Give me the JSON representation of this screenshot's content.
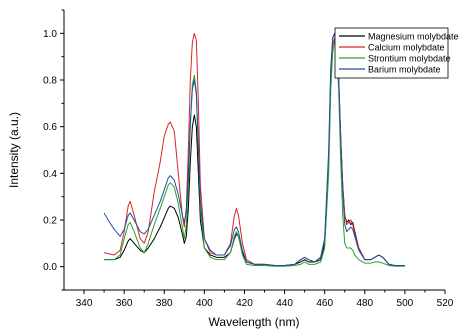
{
  "chart_data": {
    "type": "line",
    "xlabel": "Wavelength (nm)",
    "ylabel": "Intensity (a.u.)",
    "xlim": [
      330,
      520
    ],
    "ylim": [
      -0.1,
      1.1
    ],
    "xticks": [
      340,
      360,
      380,
      400,
      420,
      440,
      460,
      480,
      500,
      520
    ],
    "yticks": [
      0.0,
      0.2,
      0.4,
      0.6,
      0.8,
      1.0
    ],
    "xtick_labels": [
      "340",
      "360",
      "380",
      "400",
      "420",
      "440",
      "460",
      "480",
      "500",
      "520"
    ],
    "ytick_labels": [
      "0.0",
      "0.2",
      "0.4",
      "0.6",
      "0.8",
      "1.0"
    ],
    "grid": false,
    "legend_position": "top-right",
    "series": [
      {
        "name": "Magnesium molybdate",
        "color": "#000000",
        "points": [
          [
            350,
            0.03
          ],
          [
            355,
            0.03
          ],
          [
            358,
            0.04
          ],
          [
            360,
            0.07
          ],
          [
            362,
            0.11
          ],
          [
            363,
            0.12
          ],
          [
            365,
            0.1
          ],
          [
            368,
            0.07
          ],
          [
            370,
            0.06
          ],
          [
            372,
            0.08
          ],
          [
            375,
            0.12
          ],
          [
            378,
            0.17
          ],
          [
            380,
            0.21
          ],
          [
            382,
            0.25
          ],
          [
            383,
            0.26
          ],
          [
            385,
            0.25
          ],
          [
            387,
            0.21
          ],
          [
            389,
            0.14
          ],
          [
            390,
            0.1
          ],
          [
            391,
            0.13
          ],
          [
            392,
            0.25
          ],
          [
            393,
            0.45
          ],
          [
            394,
            0.6
          ],
          [
            395,
            0.65
          ],
          [
            396,
            0.6
          ],
          [
            397,
            0.4
          ],
          [
            398,
            0.2
          ],
          [
            400,
            0.08
          ],
          [
            403,
            0.05
          ],
          [
            406,
            0.04
          ],
          [
            410,
            0.04
          ],
          [
            413,
            0.06
          ],
          [
            415,
            0.12
          ],
          [
            416,
            0.14
          ],
          [
            417,
            0.13
          ],
          [
            419,
            0.06
          ],
          [
            421,
            0.02
          ],
          [
            425,
            0.01
          ],
          [
            430,
            0.01
          ],
          [
            435,
            0.005
          ],
          [
            440,
            0.005
          ],
          [
            445,
            0.01
          ],
          [
            448,
            0.02
          ],
          [
            450,
            0.03
          ],
          [
            452,
            0.02
          ],
          [
            455,
            0.02
          ],
          [
            458,
            0.03
          ],
          [
            460,
            0.1
          ],
          [
            462,
            0.45
          ],
          [
            463,
            0.8
          ],
          [
            464,
            0.98
          ],
          [
            465,
            1.0
          ],
          [
            466,
            0.95
          ],
          [
            467,
            0.8
          ],
          [
            468,
            0.55
          ],
          [
            469,
            0.35
          ],
          [
            470,
            0.22
          ],
          [
            471,
            0.19
          ],
          [
            472,
            0.2
          ],
          [
            473,
            0.18
          ],
          [
            474,
            0.19
          ],
          [
            475,
            0.15
          ],
          [
            477,
            0.08
          ],
          [
            480,
            0.03
          ],
          [
            483,
            0.03
          ],
          [
            485,
            0.04
          ],
          [
            487,
            0.05
          ],
          [
            489,
            0.04
          ],
          [
            492,
            0.01
          ],
          [
            495,
            0.005
          ],
          [
            500,
            0.005
          ]
        ]
      },
      {
        "name": "Calcium molybdate",
        "color": "#d62728",
        "points": [
          [
            350,
            0.06
          ],
          [
            355,
            0.05
          ],
          [
            358,
            0.07
          ],
          [
            360,
            0.15
          ],
          [
            362,
            0.26
          ],
          [
            363,
            0.28
          ],
          [
            365,
            0.22
          ],
          [
            368,
            0.12
          ],
          [
            370,
            0.1
          ],
          [
            372,
            0.15
          ],
          [
            375,
            0.32
          ],
          [
            378,
            0.45
          ],
          [
            380,
            0.56
          ],
          [
            382,
            0.61
          ],
          [
            383,
            0.62
          ],
          [
            385,
            0.58
          ],
          [
            387,
            0.4
          ],
          [
            389,
            0.22
          ],
          [
            390,
            0.17
          ],
          [
            391,
            0.25
          ],
          [
            392,
            0.5
          ],
          [
            393,
            0.8
          ],
          [
            394,
            0.96
          ],
          [
            395,
            1.0
          ],
          [
            396,
            0.97
          ],
          [
            397,
            0.7
          ],
          [
            398,
            0.35
          ],
          [
            400,
            0.12
          ],
          [
            403,
            0.06
          ],
          [
            406,
            0.05
          ],
          [
            410,
            0.05
          ],
          [
            413,
            0.1
          ],
          [
            415,
            0.22
          ],
          [
            416,
            0.25
          ],
          [
            417,
            0.22
          ],
          [
            419,
            0.1
          ],
          [
            421,
            0.03
          ],
          [
            425,
            0.01
          ],
          [
            430,
            0.01
          ],
          [
            435,
            0.005
          ],
          [
            440,
            0.005
          ],
          [
            445,
            0.01
          ],
          [
            448,
            0.03
          ],
          [
            450,
            0.04
          ],
          [
            452,
            0.03
          ],
          [
            455,
            0.02
          ],
          [
            458,
            0.04
          ],
          [
            460,
            0.12
          ],
          [
            462,
            0.48
          ],
          [
            463,
            0.8
          ],
          [
            464,
            0.95
          ],
          [
            465,
            0.98
          ],
          [
            466,
            0.94
          ],
          [
            467,
            0.8
          ],
          [
            468,
            0.55
          ],
          [
            469,
            0.35
          ],
          [
            470,
            0.22
          ],
          [
            471,
            0.18
          ],
          [
            472,
            0.19
          ],
          [
            473,
            0.2
          ],
          [
            474,
            0.18
          ],
          [
            475,
            0.14
          ],
          [
            477,
            0.08
          ],
          [
            480,
            0.03
          ],
          [
            483,
            0.03
          ],
          [
            485,
            0.04
          ],
          [
            487,
            0.05
          ],
          [
            489,
            0.04
          ],
          [
            492,
            0.01
          ],
          [
            495,
            0.005
          ],
          [
            500,
            0.005
          ]
        ]
      },
      {
        "name": "Strontium molybdate",
        "color": "#2ca02c",
        "points": [
          [
            350,
            0.03
          ],
          [
            355,
            0.03
          ],
          [
            358,
            0.05
          ],
          [
            360,
            0.12
          ],
          [
            362,
            0.18
          ],
          [
            363,
            0.19
          ],
          [
            365,
            0.15
          ],
          [
            368,
            0.08
          ],
          [
            370,
            0.06
          ],
          [
            372,
            0.1
          ],
          [
            375,
            0.18
          ],
          [
            378,
            0.25
          ],
          [
            380,
            0.3
          ],
          [
            382,
            0.35
          ],
          [
            383,
            0.36
          ],
          [
            385,
            0.34
          ],
          [
            387,
            0.27
          ],
          [
            389,
            0.17
          ],
          [
            390,
            0.12
          ],
          [
            391,
            0.18
          ],
          [
            392,
            0.35
          ],
          [
            393,
            0.6
          ],
          [
            394,
            0.78
          ],
          [
            395,
            0.82
          ],
          [
            396,
            0.75
          ],
          [
            397,
            0.5
          ],
          [
            398,
            0.25
          ],
          [
            400,
            0.08
          ],
          [
            403,
            0.04
          ],
          [
            406,
            0.03
          ],
          [
            410,
            0.03
          ],
          [
            413,
            0.06
          ],
          [
            415,
            0.13
          ],
          [
            416,
            0.15
          ],
          [
            417,
            0.13
          ],
          [
            419,
            0.05
          ],
          [
            421,
            0.01
          ],
          [
            425,
            0.005
          ],
          [
            430,
            0.005
          ],
          [
            435,
            0.002
          ],
          [
            440,
            0.002
          ],
          [
            445,
            0.005
          ],
          [
            448,
            0.01
          ],
          [
            450,
            0.02
          ],
          [
            452,
            0.01
          ],
          [
            455,
            0.01
          ],
          [
            458,
            0.02
          ],
          [
            460,
            0.08
          ],
          [
            462,
            0.4
          ],
          [
            463,
            0.75
          ],
          [
            464,
            0.92
          ],
          [
            465,
            0.97
          ],
          [
            466,
            0.94
          ],
          [
            467,
            0.75
          ],
          [
            468,
            0.45
          ],
          [
            469,
            0.22
          ],
          [
            470,
            0.1
          ],
          [
            471,
            0.08
          ],
          [
            472,
            0.08
          ],
          [
            473,
            0.08
          ],
          [
            474,
            0.07
          ],
          [
            475,
            0.05
          ],
          [
            477,
            0.03
          ],
          [
            480,
            0.015
          ],
          [
            483,
            0.015
          ],
          [
            485,
            0.02
          ],
          [
            487,
            0.02
          ],
          [
            489,
            0.015
          ],
          [
            492,
            0.005
          ],
          [
            495,
            0.002
          ],
          [
            500,
            0.002
          ]
        ]
      },
      {
        "name": "Barium molybdate",
        "color": "#1f4fa8",
        "points": [
          [
            350,
            0.23
          ],
          [
            352,
            0.2
          ],
          [
            355,
            0.16
          ],
          [
            358,
            0.13
          ],
          [
            360,
            0.16
          ],
          [
            362,
            0.22
          ],
          [
            363,
            0.23
          ],
          [
            365,
            0.2
          ],
          [
            368,
            0.15
          ],
          [
            370,
            0.14
          ],
          [
            372,
            0.16
          ],
          [
            375,
            0.22
          ],
          [
            378,
            0.28
          ],
          [
            380,
            0.33
          ],
          [
            382,
            0.38
          ],
          [
            383,
            0.39
          ],
          [
            385,
            0.37
          ],
          [
            387,
            0.31
          ],
          [
            389,
            0.22
          ],
          [
            390,
            0.19
          ],
          [
            391,
            0.24
          ],
          [
            392,
            0.4
          ],
          [
            393,
            0.62
          ],
          [
            394,
            0.76
          ],
          [
            395,
            0.8
          ],
          [
            396,
            0.74
          ],
          [
            397,
            0.52
          ],
          [
            398,
            0.28
          ],
          [
            400,
            0.12
          ],
          [
            403,
            0.07
          ],
          [
            406,
            0.05
          ],
          [
            410,
            0.05
          ],
          [
            413,
            0.09
          ],
          [
            415,
            0.16
          ],
          [
            416,
            0.17
          ],
          [
            417,
            0.15
          ],
          [
            419,
            0.07
          ],
          [
            421,
            0.02
          ],
          [
            425,
            0.01
          ],
          [
            430,
            0.01
          ],
          [
            435,
            0.005
          ],
          [
            440,
            0.005
          ],
          [
            445,
            0.01
          ],
          [
            448,
            0.03
          ],
          [
            450,
            0.04
          ],
          [
            452,
            0.03
          ],
          [
            455,
            0.02
          ],
          [
            458,
            0.04
          ],
          [
            460,
            0.12
          ],
          [
            462,
            0.5
          ],
          [
            463,
            0.85
          ],
          [
            464,
            0.98
          ],
          [
            465,
            1.0
          ],
          [
            466,
            0.95
          ],
          [
            467,
            0.8
          ],
          [
            468,
            0.55
          ],
          [
            469,
            0.32
          ],
          [
            470,
            0.18
          ],
          [
            471,
            0.15
          ],
          [
            472,
            0.16
          ],
          [
            473,
            0.17
          ],
          [
            474,
            0.16
          ],
          [
            475,
            0.13
          ],
          [
            477,
            0.07
          ],
          [
            480,
            0.03
          ],
          [
            483,
            0.03
          ],
          [
            485,
            0.04
          ],
          [
            487,
            0.05
          ],
          [
            489,
            0.04
          ],
          [
            492,
            0.01
          ],
          [
            495,
            0.005
          ],
          [
            500,
            0.005
          ]
        ]
      }
    ]
  }
}
